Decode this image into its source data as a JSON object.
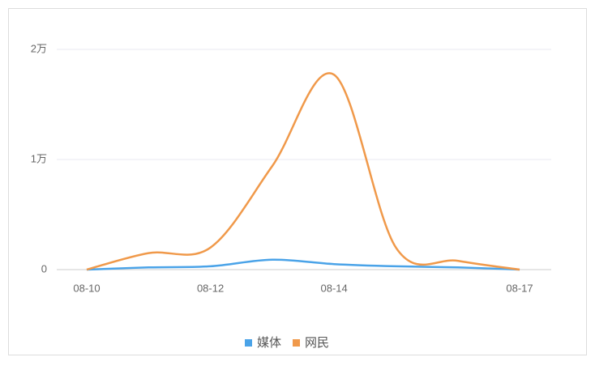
{
  "chart_data": {
    "type": "line",
    "categories": [
      "08-10",
      null,
      "08-12",
      null,
      "08-14",
      null,
      null,
      "08-17"
    ],
    "series": [
      {
        "name": "媒体",
        "color": "#4aa3e8",
        "values": [
          0,
          200,
          300,
          900,
          500,
          300,
          200,
          0
        ]
      },
      {
        "name": "网民",
        "color": "#f0994a",
        "values": [
          0,
          1500,
          2000,
          9400,
          17700,
          2000,
          800,
          0
        ]
      }
    ],
    "ylim": [
      0,
      20000
    ],
    "yticks": [
      0,
      {
        "value": 10000,
        "label": "1万"
      },
      {
        "value": 20000,
        "label": "2万"
      }
    ],
    "grid": true,
    "legend": "bottom",
    "smooth": true
  }
}
